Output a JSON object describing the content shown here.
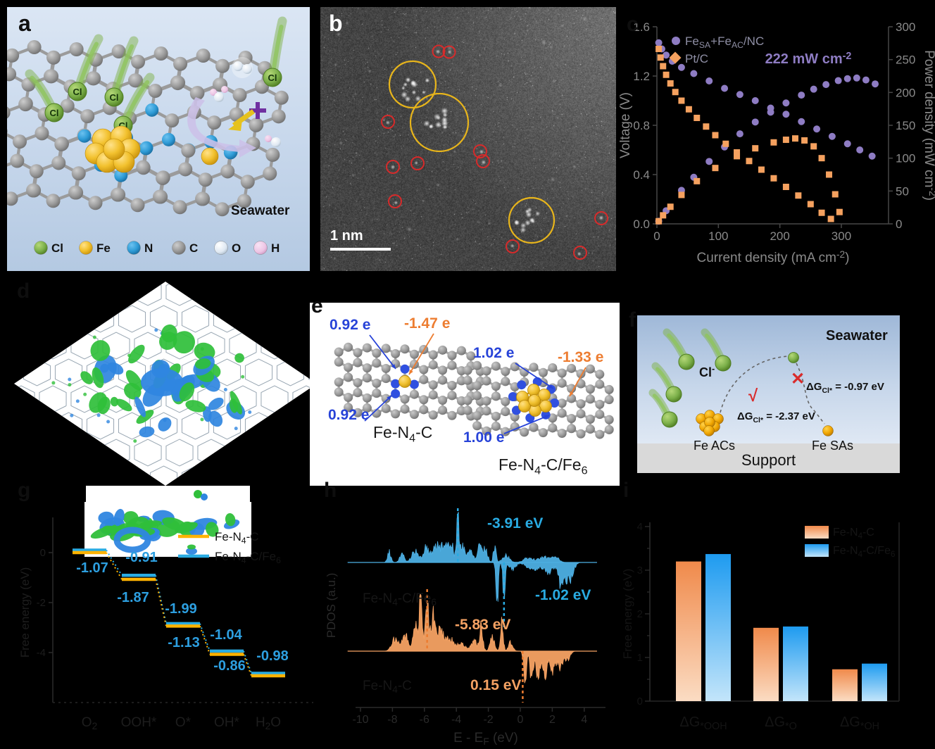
{
  "panel_letters": {
    "a": "a",
    "b": "b",
    "c": "c",
    "d": "d",
    "e": "e",
    "f": "f",
    "g": "g",
    "h": "h",
    "i": "i"
  },
  "panel_a": {
    "seawater_label": "Seawater",
    "cl_ion_label": "Cl",
    "atom_legend": [
      {
        "symbol": "Cl",
        "color": "#70AD47"
      },
      {
        "symbol": "Fe",
        "color": "#F0C12E"
      },
      {
        "symbol": "N",
        "color": "#2E9BD6"
      },
      {
        "symbol": "C",
        "color": "#8C8C8C"
      },
      {
        "symbol": "O",
        "color": "#E6EDF5"
      },
      {
        "symbol": "H",
        "color": "#EFC9E8"
      }
    ]
  },
  "panel_b": {
    "scale_bar_label": "1 nm",
    "cluster_circle_color": "#E8B51B",
    "single_atom_circle_color": "#D62B2B",
    "cluster_circle_count": 3,
    "single_atom_circle_count": 11
  },
  "panel_d": {
    "isosurface_positive_color": "#2FBF3A",
    "isosurface_negative_color": "#2F86E0"
  },
  "panel_e": {
    "left": {
      "label": "Fe-N_{4}-C",
      "charge_n_top": "0.92 e",
      "charge_fe": "-1.47 e",
      "charge_n_bottom": "0.92 e"
    },
    "right": {
      "label": "Fe-N_{4}-C/Fe_{6}",
      "charge_n_top": "1.02 e",
      "charge_fe": "-1.33 e",
      "charge_n_bottom": "1.00 e"
    }
  },
  "panel_f": {
    "seawater_label": "Seawater",
    "cl_ion_label": "Cl^{-}",
    "dg_single_atom": "ΔG_{Cl*} = -0.97 eV",
    "dg_cluster": "ΔG_{Cl*} = -2.37 eV",
    "verdict_cluster": "√",
    "verdict_single": "✕",
    "fe_clusters_label": "Fe ACs",
    "fe_single_label": "Fe SAs",
    "support_label": "Support"
  },
  "chart_data": [
    {
      "panel": "c",
      "type": "scatter",
      "xlabel": "Current density (mA cm^{-2})",
      "ylabel_left": "Voltage (V)",
      "ylabel_right": "Power density (mW cm^{-2})",
      "xlim": [
        0,
        377
      ],
      "ylim_left": [
        0,
        1.6
      ],
      "ylim_right": [
        0,
        300
      ],
      "xticks": [
        "0",
        "100",
        "200",
        "300"
      ],
      "yticks_left": [
        "0.0",
        "0.4",
        "0.8",
        "1.2",
        "1.6"
      ],
      "yticks_right": [
        "0",
        "50",
        "100",
        "150",
        "200",
        "250",
        "300"
      ],
      "grid": false,
      "legend_position": "top-left",
      "peak_annotation": "222 mW cm^{-2}",
      "legend": [
        {
          "label": "Fe_{SA}+Fe_{AC}/NC",
          "marker": "circle",
          "color": "#8E7CC3"
        },
        {
          "label": "Pt/C",
          "marker": "square",
          "color": "#F5A15F"
        }
      ],
      "series": [
        {
          "name": "Fe_{SA}+Fe_{AC}/NC",
          "role": "voltage",
          "axis": "left",
          "marker": "circle",
          "color": "#8E7CC3",
          "points": [
            [
              3,
              1.47
            ],
            [
              8,
              1.42
            ],
            [
              15,
              1.37
            ],
            [
              25,
              1.32
            ],
            [
              40,
              1.27
            ],
            [
              60,
              1.22
            ],
            [
              85,
              1.16
            ],
            [
              110,
              1.1
            ],
            [
              135,
              1.05
            ],
            [
              160,
              1.0
            ],
            [
              185,
              0.94
            ],
            [
              210,
              0.89
            ],
            [
              235,
              0.83
            ],
            [
              260,
              0.77
            ],
            [
              285,
              0.71
            ],
            [
              310,
              0.65
            ],
            [
              330,
              0.6
            ],
            [
              350,
              0.55
            ]
          ]
        },
        {
          "name": "Fe_{SA}+Fe_{AC}/NC",
          "role": "power",
          "axis": "right",
          "marker": "circle",
          "color": "#8E7CC3",
          "points": [
            [
              3,
              4
            ],
            [
              15,
              20
            ],
            [
              40,
              51
            ],
            [
              60,
              71
            ],
            [
              85,
              95
            ],
            [
              110,
              117
            ],
            [
              135,
              137
            ],
            [
              160,
              155
            ],
            [
              185,
              170
            ],
            [
              210,
              184
            ],
            [
              235,
              196
            ],
            [
              255,
              205
            ],
            [
              275,
              212
            ],
            [
              295,
              218
            ],
            [
              310,
              221
            ],
            [
              325,
              222
            ],
            [
              340,
              219
            ],
            [
              355,
              213
            ]
          ]
        },
        {
          "name": "Pt/C",
          "role": "voltage",
          "axis": "left",
          "marker": "square",
          "color": "#F5A15F",
          "points": [
            [
              3,
              1.42
            ],
            [
              6,
              1.35
            ],
            [
              10,
              1.28
            ],
            [
              15,
              1.21
            ],
            [
              22,
              1.14
            ],
            [
              30,
              1.07
            ],
            [
              40,
              1.0
            ],
            [
              52,
              0.93
            ],
            [
              65,
              0.86
            ],
            [
              80,
              0.79
            ],
            [
              95,
              0.72
            ],
            [
              112,
              0.65
            ],
            [
              130,
              0.58
            ],
            [
              150,
              0.51
            ],
            [
              170,
              0.44
            ],
            [
              190,
              0.37
            ],
            [
              210,
              0.3
            ],
            [
              230,
              0.23
            ],
            [
              250,
              0.16
            ],
            [
              268,
              0.09
            ],
            [
              283,
              0.04
            ]
          ]
        },
        {
          "name": "Pt/C",
          "role": "power",
          "axis": "right",
          "marker": "square",
          "color": "#F5A15F",
          "points": [
            [
              3,
              4
            ],
            [
              10,
              13
            ],
            [
              22,
              26
            ],
            [
              40,
              44
            ],
            [
              65,
              65
            ],
            [
              95,
              85
            ],
            [
              130,
              103
            ],
            [
              160,
              115
            ],
            [
              190,
              124
            ],
            [
              210,
              128
            ],
            [
              225,
              130
            ],
            [
              240,
              127
            ],
            [
              255,
              118
            ],
            [
              268,
              100
            ],
            [
              280,
              75
            ],
            [
              290,
              45
            ],
            [
              297,
              18
            ]
          ]
        }
      ]
    },
    {
      "panel": "g",
      "type": "line",
      "subtype": "energy-steps",
      "ylabel": "Free energy (eV)",
      "categories": [
        "O_{2}",
        "OOH*",
        "O*",
        "OH*",
        "H_{2}O"
      ],
      "yticks": [
        "0",
        "-2",
        "-4"
      ],
      "series": [
        {
          "name": "Fe-N_{4}-C",
          "color": "#FFB300",
          "cumulative": [
            0,
            -1.07,
            -2.94,
            -4.07,
            -4.93
          ],
          "steps": [
            -1.07,
            -1.87,
            -1.13,
            -0.86
          ]
        },
        {
          "name": "Fe-N_{4}-C/Fe_{6}",
          "color": "#29ABE2",
          "cumulative": [
            0,
            -0.91,
            -2.9,
            -3.94,
            -4.92
          ],
          "steps": [
            -0.91,
            -1.99,
            -1.04,
            -0.98
          ]
        }
      ],
      "step_annotations": [
        "-1.07",
        "-0.91",
        "-1.87",
        "-1.99",
        "-1.13",
        "-1.04",
        "-0.86",
        "-0.98"
      ]
    },
    {
      "panel": "h",
      "type": "area",
      "subtype": "pdos",
      "xlabel": "E - E_{F} (eV)",
      "ylabel": "PDOS (a.u.)",
      "xticks": [
        "-10",
        "-8",
        "-6",
        "-4",
        "-2",
        "0",
        "2",
        "4"
      ],
      "xlim": [
        -11,
        5
      ],
      "traces": [
        {
          "name": "Fe-N_{4}-C/Fe_{6}",
          "color": "#4DAFE3",
          "peak_marks": [
            {
              "text": "-3.91 eV",
              "x": -3.91
            },
            {
              "text": "-1.02 eV",
              "x": -1.02
            }
          ]
        },
        {
          "name": "Fe-N_{4}-C",
          "color": "#F5A263",
          "peak_marks": [
            {
              "text": "-5.83 eV",
              "x": -5.83
            },
            {
              "text": "0.15 eV",
              "x": 0.15
            }
          ]
        }
      ]
    },
    {
      "panel": "i",
      "type": "bar",
      "ylabel": "Free energy (eV)",
      "categories": [
        "ΔG_{*OOH}",
        "ΔG_{*O}",
        "ΔG_{*OH}"
      ],
      "ylim": [
        0,
        4
      ],
      "yticks": [
        "0",
        "1",
        "2",
        "3",
        "4"
      ],
      "series": [
        {
          "name": "Fe-N_{4}-C",
          "gradient_top": "#F08A4B",
          "gradient_bottom": "#FBDCC3",
          "values": [
            3.2,
            1.68,
            0.73
          ]
        },
        {
          "name": "Fe-N_{4}-C/Fe_{6}",
          "gradient_top": "#1E9BF0",
          "gradient_bottom": "#C3E5FA",
          "values": [
            3.37,
            1.71,
            0.86
          ]
        }
      ]
    }
  ]
}
